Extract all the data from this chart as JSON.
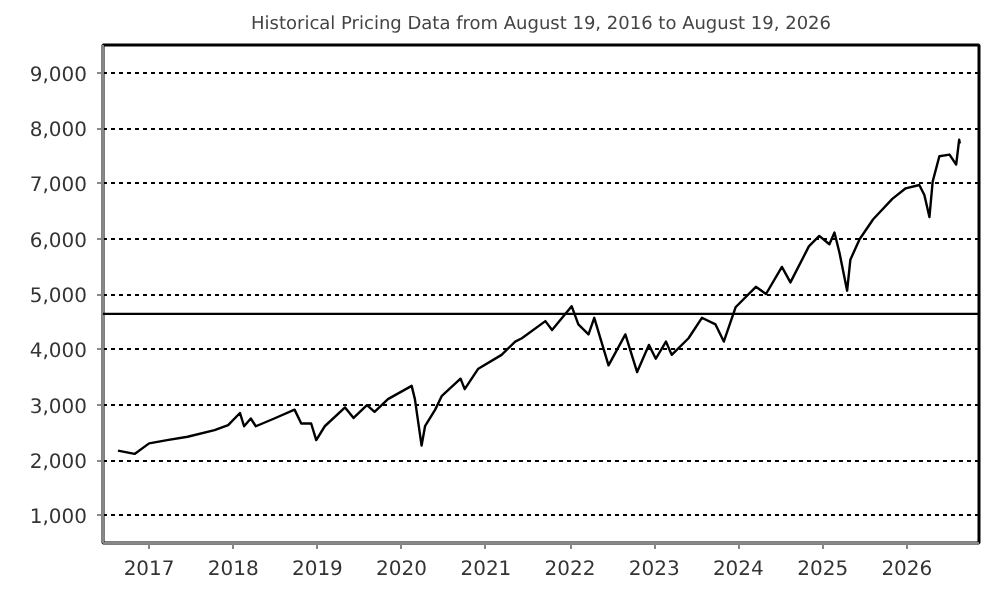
{
  "chart_data": {
    "type": "line",
    "title": "Historical Pricing Data from August 19, 2016 to August 19, 2026",
    "x": [
      "2016-08-19",
      "2016-10-30",
      "2017-01-01",
      "2017-03-20",
      "2017-06-17",
      "2017-10-12",
      "2017-12-10",
      "2018-01-30",
      "2018-02-17",
      "2018-03-18",
      "2018-04-09",
      "2018-06-28",
      "2018-09-24",
      "2018-10-23",
      "2018-12-05",
      "2018-12-27",
      "2019-02-02",
      "2019-05-01",
      "2019-06-07",
      "2019-08-04",
      "2019-09-06",
      "2019-11-03",
      "2020-02-14",
      "2020-02-28",
      "2020-03-28",
      "2020-04-12",
      "2020-05-26",
      "2020-06-24",
      "2020-09-13",
      "2020-10-01",
      "2020-11-29",
      "2021-03-10",
      "2021-05-08",
      "2021-06-06",
      "2021-09-16",
      "2021-10-15",
      "2022-01-08",
      "2022-02-06",
      "2022-03-22",
      "2022-04-16",
      "2022-06-17",
      "2022-08-29",
      "2022-10-19",
      "2022-12-09",
      "2023-01-08",
      "2023-02-21",
      "2023-03-18",
      "2023-05-30",
      "2023-07-27",
      "2023-09-24",
      "2023-10-30",
      "2023-12-20",
      "2024-03-17",
      "2024-04-30",
      "2024-07-08",
      "2024-08-14",
      "2024-11-02",
      "2024-12-17",
      "2025-01-30",
      "2025-02-21",
      "2025-03-15",
      "2025-04-17",
      "2025-05-01",
      "2025-06-10",
      "2025-08-08",
      "2025-10-30",
      "2025-12-27",
      "2026-02-24",
      "2026-03-18",
      "2026-04-09",
      "2026-04-23",
      "2026-05-22",
      "2026-07-05",
      "2026-08-03",
      "2026-08-16",
      "2026-08-19"
    ],
    "series": [
      {
        "color": "#000000",
        "values": [
          2170,
          2110,
          2300,
          2360,
          2420,
          2540,
          2630,
          2850,
          2610,
          2750,
          2610,
          2750,
          2910,
          2660,
          2660,
          2360,
          2610,
          2950,
          2760,
          2990,
          2870,
          3100,
          3340,
          3100,
          2260,
          2610,
          2910,
          3160,
          3470,
          3280,
          3650,
          3900,
          4140,
          4200,
          4510,
          4350,
          4780,
          4450,
          4270,
          4570,
          3710,
          4270,
          3590,
          4080,
          3830,
          4140,
          3900,
          4200,
          4570,
          4450,
          4140,
          4760,
          5130,
          5000,
          5490,
          5210,
          5860,
          6050,
          5900,
          6110,
          5740,
          5060,
          5620,
          5990,
          6350,
          6720,
          6910,
          6970,
          6790,
          6390,
          7030,
          7490,
          7520,
          7340,
          7790,
          7720
        ]
      }
    ],
    "xlim": [
      "2016-06-15",
      "2026-11-10"
    ],
    "xticks": [
      "2017",
      "2018",
      "2019",
      "2020",
      "2021",
      "2022",
      "2023",
      "2024",
      "2025",
      "2026"
    ],
    "ylim": [
      500,
      9500
    ],
    "yticks": [
      {
        "value": 1000,
        "label": "1,000"
      },
      {
        "value": 2000,
        "label": "2,000"
      },
      {
        "value": 3000,
        "label": "3,000"
      },
      {
        "value": 4000,
        "label": "4,000"
      },
      {
        "value": 5000,
        "label": "5,000"
      },
      {
        "value": 6000,
        "label": "6,000"
      },
      {
        "value": 7000,
        "label": "7,000"
      },
      {
        "value": 8000,
        "label": "8,000"
      },
      {
        "value": 9000,
        "label": "9,000"
      }
    ],
    "ref_lines": [
      {
        "axis": "y",
        "value": 4640,
        "color": "#000000"
      }
    ],
    "grid": "y",
    "marker": "none",
    "line_style": "solid"
  }
}
